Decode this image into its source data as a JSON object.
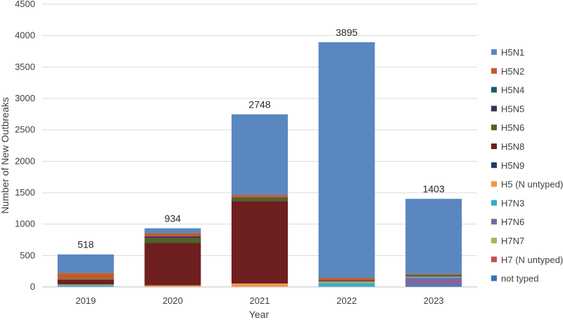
{
  "chart_data": {
    "type": "bar",
    "stacked": true,
    "title": "",
    "xlabel": "Year",
    "ylabel": "Number of New Outbreaks",
    "ylim": [
      0,
      4500
    ],
    "yticks": [
      "0",
      "500",
      "1000",
      "1500",
      "2000",
      "2500",
      "3000",
      "3500",
      "4000",
      "4500"
    ],
    "grid": true,
    "legend_position": "right",
    "categories": [
      "2019",
      "2020",
      "2021",
      "2022",
      "2023"
    ],
    "totals": [
      "518",
      "934",
      "2748",
      "3895",
      "1403"
    ],
    "series": [
      {
        "name": "not typed",
        "color": "#2e75b6",
        "values": [
          5,
          5,
          5,
          10,
          30
        ]
      },
      {
        "name": "H7 (N untyped)",
        "color": "#c0504d",
        "values": [
          0,
          0,
          0,
          0,
          0
        ]
      },
      {
        "name": "H7N7",
        "color": "#9bbb59",
        "values": [
          0,
          0,
          0,
          0,
          0
        ]
      },
      {
        "name": "H7N6",
        "color": "#8064a2",
        "values": [
          0,
          0,
          0,
          0,
          110
        ]
      },
      {
        "name": "H7N3",
        "color": "#31b0c9",
        "values": [
          25,
          0,
          0,
          55,
          15
        ]
      },
      {
        "name": "H5 (N untyped)",
        "color": "#f79646",
        "values": [
          10,
          20,
          50,
          20,
          5
        ]
      },
      {
        "name": "H5N9",
        "color": "#1f3864",
        "values": [
          0,
          0,
          0,
          0,
          0
        ]
      },
      {
        "name": "H5N8",
        "color": "#6e1f1f",
        "values": [
          75,
          675,
          1305,
          5,
          0
        ]
      },
      {
        "name": "H5N6",
        "color": "#4f6228",
        "values": [
          10,
          75,
          50,
          10,
          10
        ]
      },
      {
        "name": "H5N5",
        "color": "#3f3151",
        "values": [
          5,
          30,
          10,
          10,
          5
        ]
      },
      {
        "name": "H5N4",
        "color": "#215967",
        "values": [
          0,
          0,
          5,
          5,
          15
        ]
      },
      {
        "name": "H5N2",
        "color": "#c55a28",
        "values": [
          90,
          50,
          40,
          30,
          20
        ]
      },
      {
        "name": "H5N1",
        "color": "#5b87c1",
        "values": [
          298,
          79,
          1283,
          3750,
          1193
        ]
      }
    ]
  }
}
